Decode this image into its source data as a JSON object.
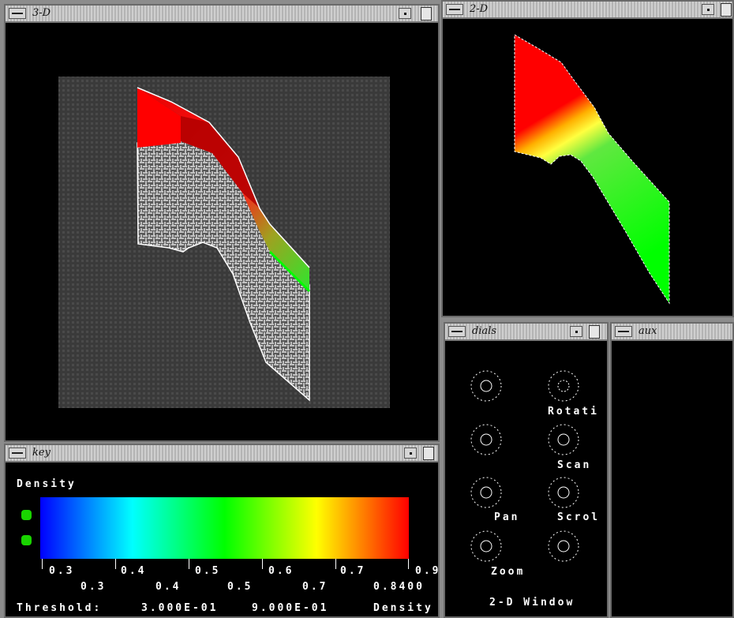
{
  "windows": {
    "view3d": {
      "title": "3-D"
    },
    "view2d": {
      "title": "2-D"
    },
    "key": {
      "title": "key"
    },
    "dials": {
      "title": "dials"
    },
    "aux": {
      "title": "aux"
    }
  },
  "key": {
    "variable": "Density",
    "upper_ticks": [
      "0.3",
      "0.4",
      "0.5",
      "0.6",
      "0.7",
      "0.9"
    ],
    "lower_ticks": [
      "0.3",
      "0.4",
      "0.5",
      "0.7",
      "0.8400"
    ],
    "threshold_label": "Threshold:",
    "threshold_min": "3.000E-01",
    "threshold_max": "9.000E-01",
    "threshold_var": "Density",
    "colormap": [
      "#0000ff",
      "#00ffff",
      "#00ff00",
      "#ffff00",
      "#ff0000"
    ]
  },
  "dials": {
    "labels": [
      "Rotati",
      "Scan",
      "Pan",
      "Scrol",
      "Zoom"
    ],
    "footer": "2-D Window"
  }
}
